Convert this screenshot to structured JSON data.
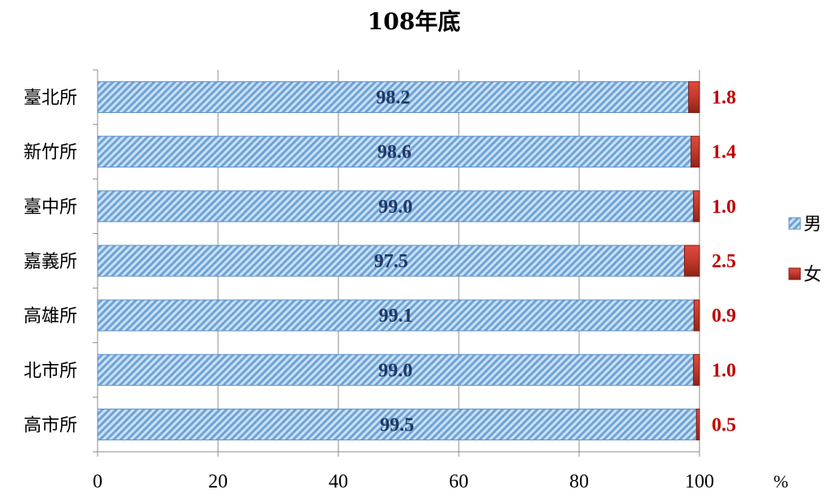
{
  "chart_data": {
    "type": "bar",
    "orientation": "horizontal",
    "stacked": true,
    "title": "108年底",
    "categories": [
      "臺北所",
      "新竹所",
      "臺中所",
      "嘉義所",
      "高雄所",
      "北市所",
      "高市所"
    ],
    "series": [
      {
        "name": "男",
        "values": [
          98.2,
          98.6,
          99.0,
          97.5,
          99.1,
          99.0,
          99.5
        ],
        "color": "#9dc3e6",
        "label_color": "#1f3864",
        "pattern": "diagonal-stripes"
      },
      {
        "name": "女",
        "values": [
          1.8,
          1.4,
          1.0,
          2.5,
          0.9,
          1.0,
          0.5
        ],
        "color": "#c0392b",
        "label_color": "#c00000"
      }
    ],
    "value_labels": {
      "男": [
        "98.2",
        "98.6",
        "99.0",
        "97.5",
        "99.1",
        "99.0",
        "99.5"
      ],
      "女": [
        "1.8",
        "1.4",
        "1.0",
        "2.5",
        "0.9",
        "1.0",
        "0.5"
      ]
    },
    "xlim": [
      0,
      100
    ],
    "xticks": [
      0,
      20,
      40,
      60,
      80,
      100
    ],
    "x_unit": "%",
    "grid": true,
    "legend_position": "right"
  }
}
